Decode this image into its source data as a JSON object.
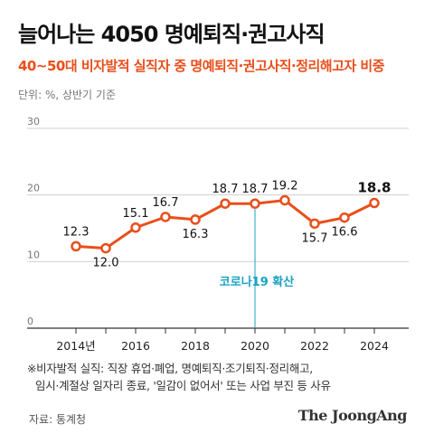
{
  "header": {
    "title": "늘어나는 4050 명예퇴직·권고사직",
    "subtitle": "40~50대 비자발적 실직자 중 명예퇴직·권고사직·정리해고자 비중",
    "unit": "단위: %, 상반기 기준"
  },
  "chart_data": {
    "type": "line",
    "x": [
      2014,
      2015,
      2016,
      2017,
      2018,
      2019,
      2020,
      2021,
      2022,
      2023,
      2024
    ],
    "x_tick_labels": [
      "2014년",
      "2016",
      "2018",
      "2020",
      "2022",
      "2024"
    ],
    "x_tick_values": [
      2014,
      2016,
      2018,
      2020,
      2022,
      2024
    ],
    "series": [
      {
        "values": [
          12.3,
          12.0,
          15.1,
          16.7,
          16.3,
          18.7,
          18.7,
          19.2,
          15.7,
          16.6,
          18.8
        ]
      }
    ],
    "data_labels": [
      "12.3",
      "12.0",
      "15.1",
      "16.7",
      "16.3",
      "18.7",
      "18.7",
      "19.2",
      "15.7",
      "16.6",
      "18.8"
    ],
    "y_tick_labels": [
      "0",
      "10",
      "20",
      "30"
    ],
    "ylim": [
      0,
      30
    ],
    "grid": "horizontal",
    "annotation": {
      "x": 2020,
      "label": "코로나19 확산"
    },
    "colors": {
      "line": "#e94e1b",
      "marker_fill": "#ffffff",
      "grid": "#d0d0d0",
      "axis": "#333333",
      "annotation": "#1aa3c4"
    }
  },
  "footer": {
    "note_line1": "※비자발적 실직: 직장 휴업·폐업, 명예퇴직·조기퇴직·정리해고,",
    "note_line2": "임시·계절상 일자리 종료, '일감이 없어서' 또는 사업 부진 등 사유",
    "source": "자료: 통계청",
    "brand": "The JoongAng"
  }
}
